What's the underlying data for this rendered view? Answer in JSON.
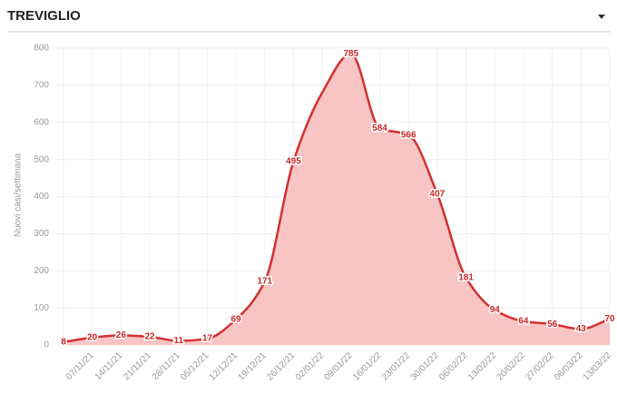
{
  "chart_data": {
    "type": "area",
    "title": "TREVIGLIO",
    "y_label": "Nuovi casi/settimana",
    "categories": [
      null,
      "07/11/21",
      "14/11/21",
      "21/11/21",
      "28/11/21",
      "05/12/21",
      "12/12/21",
      "19/12/21",
      "26/12/21",
      "02/01/22",
      "09/01/22",
      "16/01/22",
      "23/01/22",
      "30/01/22",
      "06/02/22",
      "13/02/22",
      "20/02/22",
      "27/02/22",
      "06/03/22",
      "13/03/22"
    ],
    "values": [
      8,
      20,
      26,
      22,
      11,
      17,
      69,
      171,
      495,
      680,
      785,
      584,
      566,
      407,
      181,
      94,
      64,
      56,
      43,
      70
    ],
    "value_labels": [
      "8",
      "20",
      "26",
      "22",
      "11",
      "17",
      "69",
      "171",
      "495",
      null,
      "785",
      "584",
      "566",
      "407",
      "181",
      "94",
      "64",
      "56",
      "43",
      "70"
    ],
    "color": "#d32f2f",
    "fill": "#f9c4c4",
    "ylim": [
      0,
      800
    ],
    "yticks": [
      0,
      100,
      200,
      300,
      400,
      500,
      600,
      700,
      800
    ],
    "grid": true
  }
}
